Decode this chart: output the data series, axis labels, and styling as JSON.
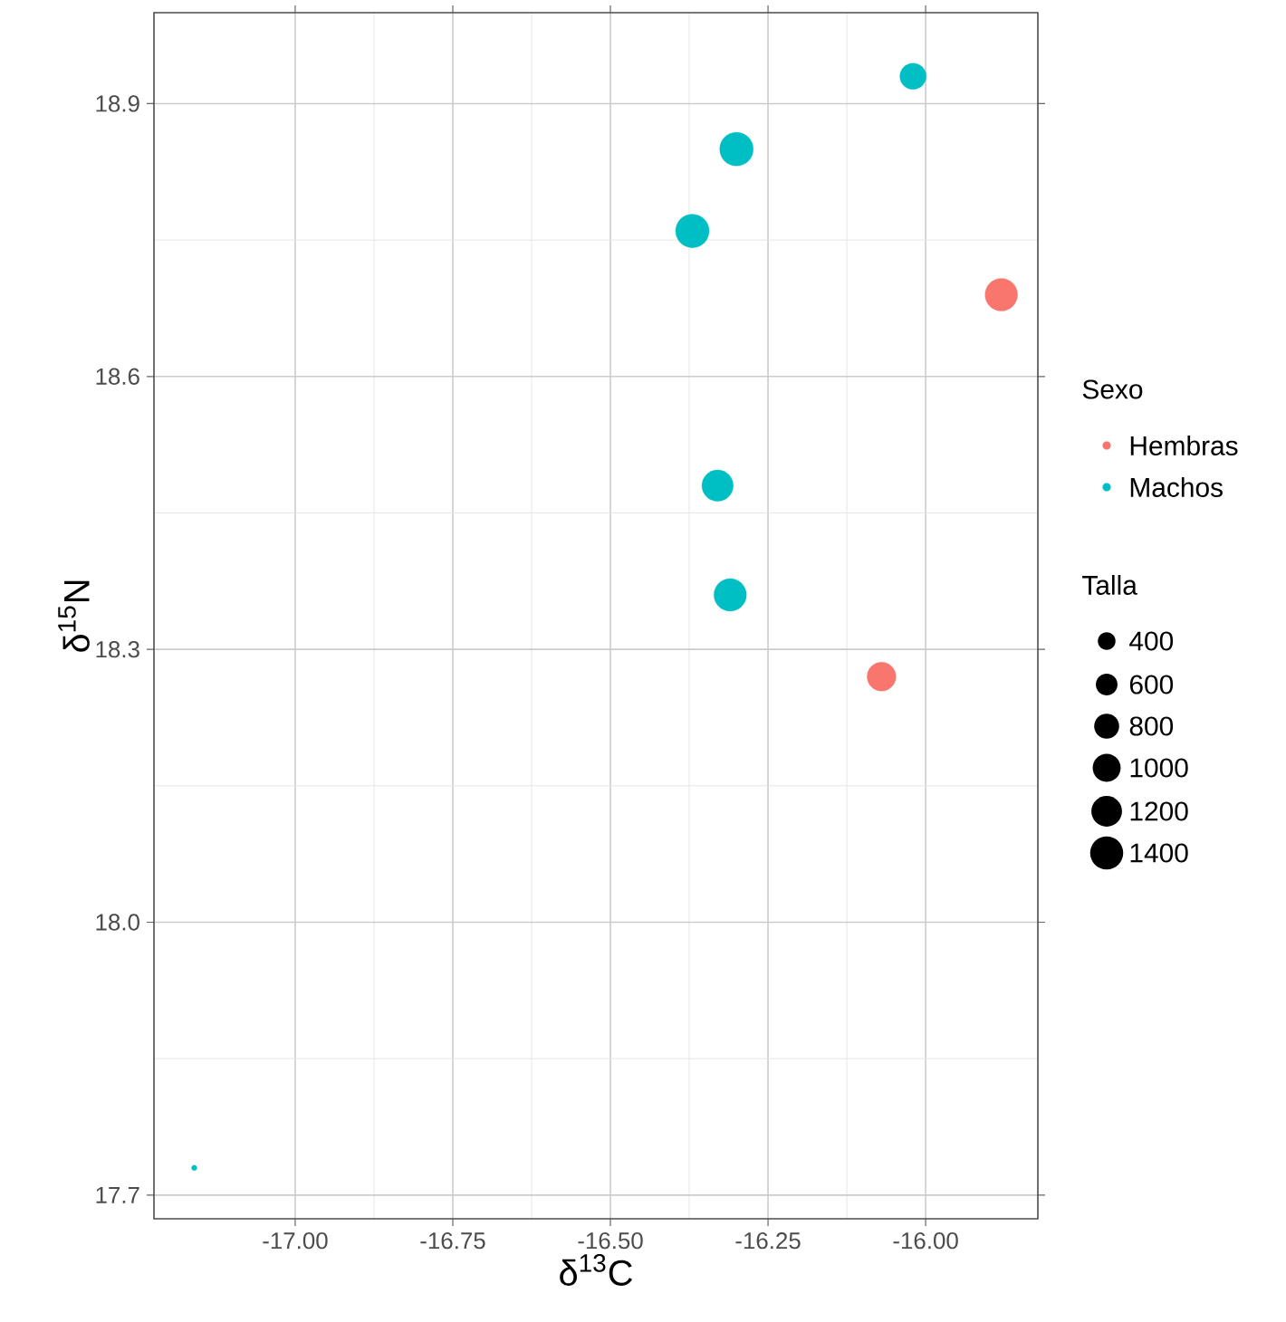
{
  "chart_data": {
    "type": "bubble",
    "xlabel": "δ$^{13}$C",
    "ylabel": "δ$^{15}$N",
    "legend_title": "Sexo",
    "series": [
      {
        "name": "Hembras",
        "color": "#f8766d",
        "x": [
          -15.88,
          -16.07
        ],
        "values": [
          18.69,
          18.27
        ],
        "sizes": [
          1360,
          1070
        ]
      },
      {
        "name": "Machos",
        "color": "#00bfc4",
        "x": [
          -16.02,
          -16.3,
          -16.37,
          -16.33,
          -16.31,
          -17.16
        ],
        "values": [
          18.93,
          18.85,
          18.76,
          18.48,
          18.36,
          17.73
        ],
        "sizes": [
          890,
          1450,
          1450,
          1270,
          1360,
          40
        ]
      }
    ],
    "size_legend": [
      400,
      600,
      800,
      1000,
      1200,
      1400
    ],
    "annotations": [
      "Talla"
    ],
    "xlim": [
      -17.224,
      -15.822
    ],
    "ylim": [
      17.674,
      19.0
    ],
    "xticks": [
      {
        "value": -17.0,
        "label": "-17.00"
      },
      {
        "value": -16.75,
        "label": "-16.75"
      },
      {
        "value": -16.5,
        "label": "-16.50"
      },
      {
        "value": -16.25,
        "label": "-16.25"
      },
      {
        "value": -16.0,
        "label": "-16.00"
      }
    ],
    "yticks": [
      17.7,
      {
        "value": 18.0,
        "label": "18.0"
      },
      18.3,
      18.6,
      18.9
    ],
    "grid": true,
    "legend": "right",
    "marker": "circle"
  }
}
